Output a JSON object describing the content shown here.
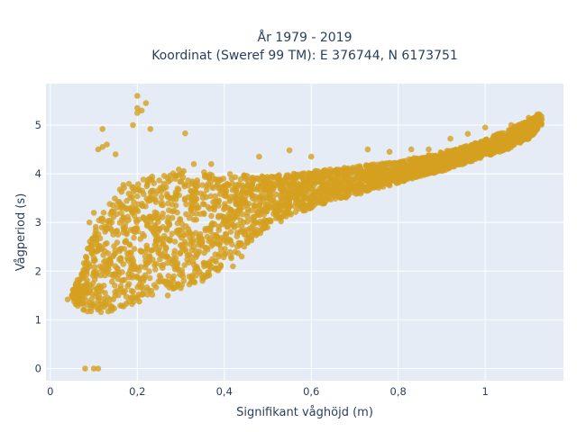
{
  "chart_data": {
    "type": "scatter",
    "title_line1": "År 1979 - 2019",
    "title_line2": "Koordinat (Sweref 99 TM): E 376744, N 6173751",
    "xlabel": "Signifikant våghöjd (m)",
    "ylabel": "Vågperiod (s)",
    "xlim": [
      -0.01,
      1.18
    ],
    "ylim": [
      -0.25,
      5.85
    ],
    "x_ticks": [
      0,
      0.2,
      0.4,
      0.6,
      0.8,
      1
    ],
    "x_tick_labels": [
      "0",
      "0,2",
      "0,4",
      "0,6",
      "0,8",
      "1"
    ],
    "y_ticks": [
      0,
      1,
      2,
      3,
      4,
      5
    ],
    "y_tick_labels": [
      "0",
      "1",
      "2",
      "3",
      "4",
      "5"
    ],
    "grid": true,
    "marker_color": "#d4a020",
    "plot_bg": "#e5ecf6",
    "bands": [
      {
        "x": 0.05,
        "lo": 1.35,
        "hi": 1.6
      },
      {
        "x": 0.07,
        "lo": 1.25,
        "hi": 1.95
      },
      {
        "x": 0.09,
        "lo": 1.1,
        "hi": 2.6
      },
      {
        "x": 0.11,
        "lo": 1.15,
        "hi": 3.05
      },
      {
        "x": 0.13,
        "lo": 1.15,
        "hi": 3.35
      },
      {
        "x": 0.15,
        "lo": 1.2,
        "hi": 3.6
      },
      {
        "x": 0.17,
        "lo": 1.25,
        "hi": 3.8
      },
      {
        "x": 0.19,
        "lo": 1.3,
        "hi": 3.95
      },
      {
        "x": 0.21,
        "lo": 1.4,
        "hi": 3.95
      },
      {
        "x": 0.23,
        "lo": 1.5,
        "hi": 4.0
      },
      {
        "x": 0.25,
        "lo": 1.55,
        "hi": 4.05
      },
      {
        "x": 0.27,
        "lo": 1.6,
        "hi": 4.05
      },
      {
        "x": 0.29,
        "lo": 1.65,
        "hi": 4.1
      },
      {
        "x": 0.31,
        "lo": 1.7,
        "hi": 4.1
      },
      {
        "x": 0.33,
        "lo": 1.75,
        "hi": 4.05
      },
      {
        "x": 0.35,
        "lo": 1.85,
        "hi": 4.05
      },
      {
        "x": 0.37,
        "lo": 1.9,
        "hi": 4.0
      },
      {
        "x": 0.4,
        "lo": 2.1,
        "hi": 4.0
      },
      {
        "x": 0.43,
        "lo": 2.35,
        "hi": 4.0
      },
      {
        "x": 0.46,
        "lo": 2.6,
        "hi": 3.95
      },
      {
        "x": 0.5,
        "lo": 2.9,
        "hi": 3.95
      },
      {
        "x": 0.55,
        "lo": 3.1,
        "hi": 4.0
      },
      {
        "x": 0.6,
        "lo": 3.3,
        "hi": 4.05
      },
      {
        "x": 0.65,
        "lo": 3.45,
        "hi": 4.1
      },
      {
        "x": 0.7,
        "lo": 3.55,
        "hi": 4.15
      },
      {
        "x": 0.75,
        "lo": 3.7,
        "hi": 4.2
      },
      {
        "x": 0.8,
        "lo": 3.8,
        "hi": 4.25
      },
      {
        "x": 0.85,
        "lo": 3.95,
        "hi": 4.35
      },
      {
        "x": 0.9,
        "lo": 4.05,
        "hi": 4.45
      },
      {
        "x": 0.95,
        "lo": 4.2,
        "hi": 4.55
      },
      {
        "x": 1.0,
        "lo": 4.35,
        "hi": 4.7
      },
      {
        "x": 1.05,
        "lo": 4.5,
        "hi": 4.9
      },
      {
        "x": 1.1,
        "lo": 4.7,
        "hi": 5.1
      },
      {
        "x": 1.13,
        "lo": 5.0,
        "hi": 5.25
      }
    ],
    "outliers": [
      {
        "x": 0.08,
        "y": 0.0
      },
      {
        "x": 0.1,
        "y": 0.0
      },
      {
        "x": 0.11,
        "y": 0.0
      },
      {
        "x": 0.11,
        "y": 4.5
      },
      {
        "x": 0.12,
        "y": 4.55
      },
      {
        "x": 0.13,
        "y": 4.6
      },
      {
        "x": 0.12,
        "y": 4.92
      },
      {
        "x": 0.15,
        "y": 4.4
      },
      {
        "x": 0.19,
        "y": 5.0
      },
      {
        "x": 0.2,
        "y": 5.25
      },
      {
        "x": 0.2,
        "y": 5.35
      },
      {
        "x": 0.2,
        "y": 5.6
      },
      {
        "x": 0.21,
        "y": 5.3
      },
      {
        "x": 0.22,
        "y": 5.45
      },
      {
        "x": 0.23,
        "y": 4.92
      },
      {
        "x": 0.31,
        "y": 4.83
      },
      {
        "x": 0.33,
        "y": 4.2
      },
      {
        "x": 0.37,
        "y": 4.2
      },
      {
        "x": 0.48,
        "y": 4.35
      },
      {
        "x": 0.55,
        "y": 4.48
      },
      {
        "x": 0.6,
        "y": 4.35
      },
      {
        "x": 0.73,
        "y": 4.5
      },
      {
        "x": 0.78,
        "y": 4.45
      },
      {
        "x": 0.83,
        "y": 4.5
      },
      {
        "x": 0.87,
        "y": 4.5
      },
      {
        "x": 0.92,
        "y": 4.72
      },
      {
        "x": 0.96,
        "y": 4.82
      },
      {
        "x": 1.0,
        "y": 4.95
      },
      {
        "x": 1.06,
        "y": 5.0
      },
      {
        "x": 1.1,
        "y": 5.15
      },
      {
        "x": 1.12,
        "y": 5.22
      },
      {
        "x": 0.09,
        "y": 3.0
      },
      {
        "x": 0.1,
        "y": 3.2
      },
      {
        "x": 0.04,
        "y": 1.42
      },
      {
        "x": 0.05,
        "y": 1.5
      },
      {
        "x": 0.42,
        "y": 2.1
      },
      {
        "x": 0.44,
        "y": 2.3
      },
      {
        "x": 0.35,
        "y": 1.8
      },
      {
        "x": 0.3,
        "y": 1.65
      },
      {
        "x": 0.27,
        "y": 1.5
      }
    ]
  }
}
